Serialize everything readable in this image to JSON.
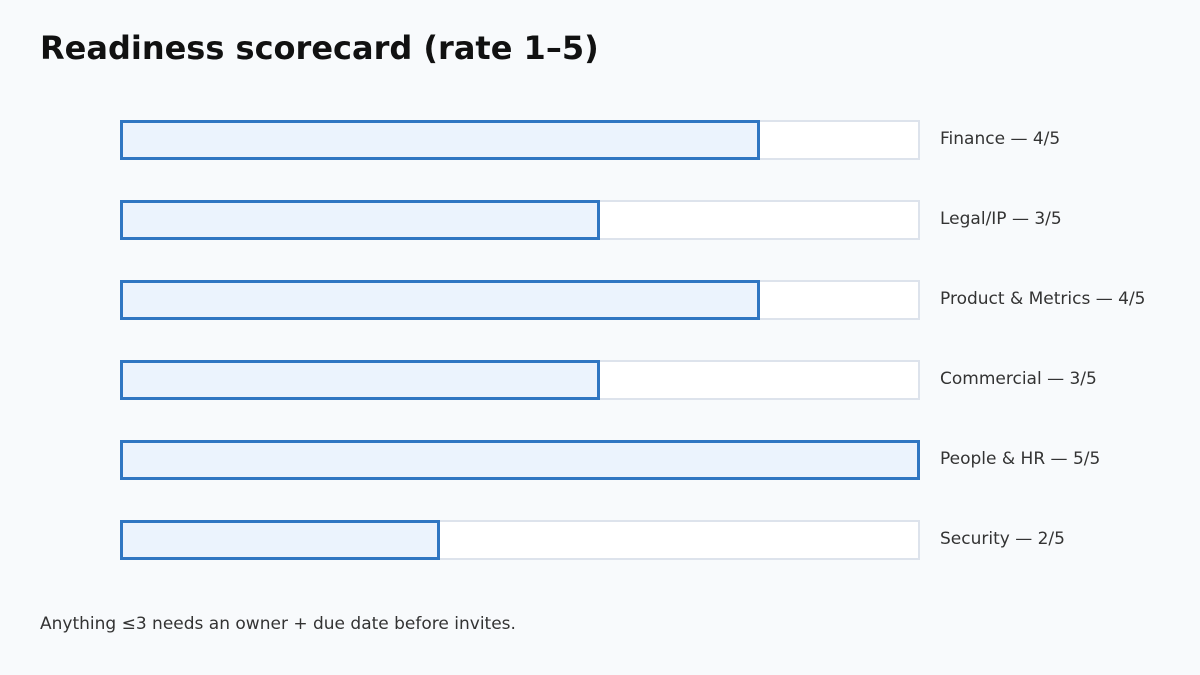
{
  "title": "Readiness scorecard (rate 1–5)",
  "footnote": "Anything ≤3 needs an owner + due date before invites.",
  "colors": {
    "background": "#f8fafc",
    "track_fill": "#ffffff",
    "track_border": "#dde3ec",
    "bar_fill": "#ebf3fd",
    "bar_border": "#2f76c2",
    "text": "#333333",
    "title": "#111111"
  },
  "chart_data": {
    "type": "bar",
    "orientation": "horizontal",
    "scale_max": 5,
    "categories": [
      "Finance",
      "Legal/IP",
      "Product & Metrics",
      "Commercial",
      "People & HR",
      "Security"
    ],
    "values": [
      4,
      3,
      4,
      3,
      5,
      2
    ],
    "labels": [
      "Finance — 4/5",
      "Legal/IP — 3/5",
      "Product & Metrics — 4/5",
      "Commercial — 3/5",
      "People & HR — 5/5",
      "Security — 2/5"
    ]
  }
}
